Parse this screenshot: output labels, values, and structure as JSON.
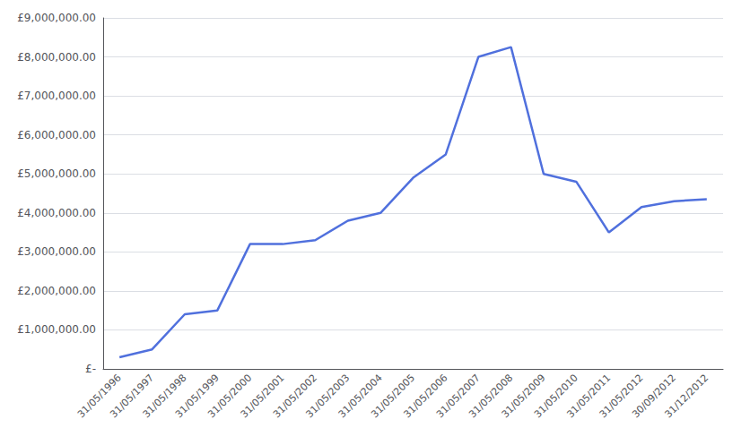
{
  "chart_data": {
    "type": "line",
    "categories": [
      "31/05/1996",
      "31/05/1997",
      "31/05/1998",
      "31/05/1999",
      "31/05/2000",
      "31/05/2001",
      "31/05/2002",
      "31/05/2003",
      "31/05/2004",
      "31/05/2005",
      "31/05/2006",
      "31/05/2007",
      "31/05/2008",
      "31/05/2009",
      "31/05/2010",
      "31/05/2011",
      "31/05/2012",
      "30/09/2012",
      "31/12/2012"
    ],
    "values": [
      300000,
      500000,
      1400000,
      1500000,
      3200000,
      3200000,
      3300000,
      3800000,
      4000000,
      4900000,
      5500000,
      8000000,
      8250000,
      5000000,
      4800000,
      3500000,
      4150000,
      4300000,
      4350000
    ],
    "ylim": [
      0,
      9000000
    ],
    "yticks": [
      {
        "value": 0,
        "label": "£-"
      },
      {
        "value": 1000000,
        "label": "£1,000,000.00"
      },
      {
        "value": 2000000,
        "label": "£2,000,000.00"
      },
      {
        "value": 3000000,
        "label": "£3,000,000.00"
      },
      {
        "value": 4000000,
        "label": "£4,000,000.00"
      },
      {
        "value": 5000000,
        "label": "£5,000,000.00"
      },
      {
        "value": 6000000,
        "label": "£6,000,000.00"
      },
      {
        "value": 7000000,
        "label": "£7,000,000.00"
      },
      {
        "value": 8000000,
        "label": "£8,000,000.00"
      },
      {
        "value": 9000000,
        "label": "£9,000,000.00"
      }
    ],
    "grid": true
  }
}
